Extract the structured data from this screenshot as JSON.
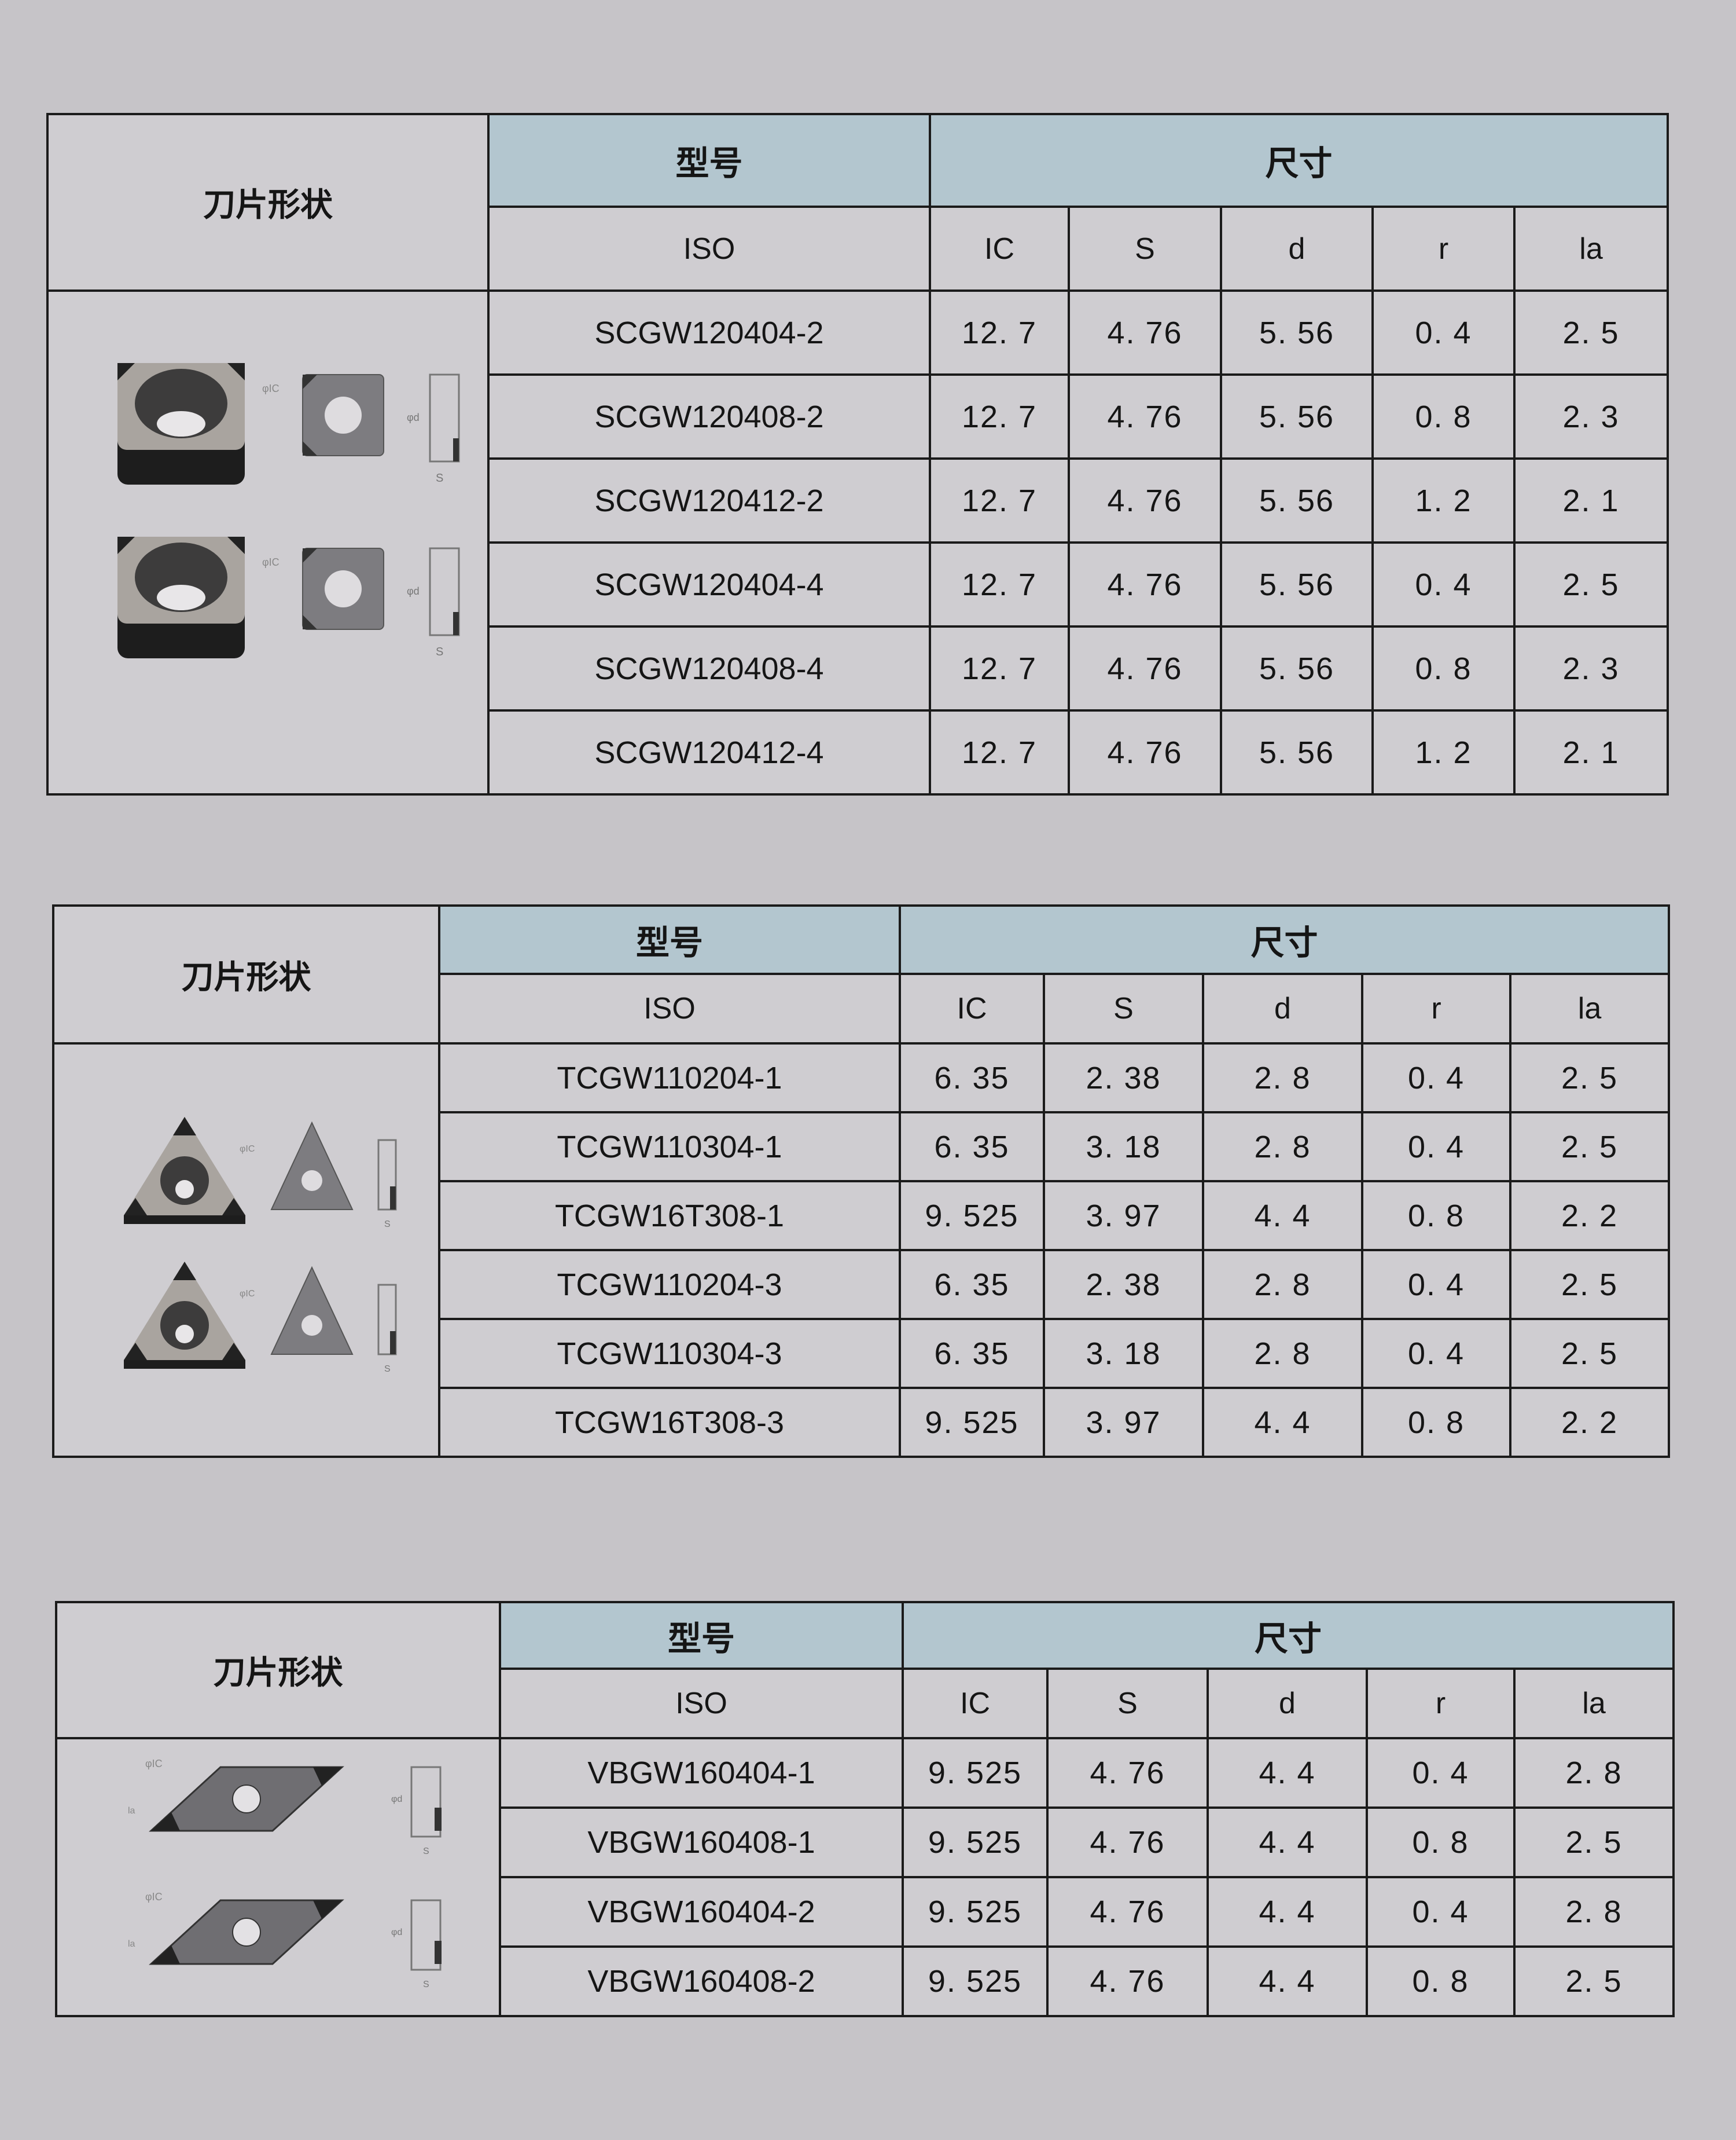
{
  "colors": {
    "header_fill": "#b3c6cf",
    "page_background": "#c6c4c8",
    "grid_line": "#1b1b1b"
  },
  "tables": [
    {
      "shape_label": "刀片形状",
      "model_label": "型号",
      "size_label": "尺寸",
      "columns": [
        "ISO",
        "IC",
        "S",
        "d",
        "r",
        "la"
      ],
      "insert_shape": "square-insert",
      "rows": [
        [
          "SCGW120404-2",
          "12. 7",
          "4. 76",
          "5. 56",
          "0. 4",
          "2. 5"
        ],
        [
          "SCGW120408-2",
          "12. 7",
          "4. 76",
          "5. 56",
          "0. 8",
          "2. 3"
        ],
        [
          "SCGW120412-2",
          "12. 7",
          "4. 76",
          "5. 56",
          "1. 2",
          "2. 1"
        ],
        [
          "SCGW120404-4",
          "12. 7",
          "4. 76",
          "5. 56",
          "0. 4",
          "2. 5"
        ],
        [
          "SCGW120408-4",
          "12. 7",
          "4. 76",
          "5. 56",
          "0. 8",
          "2. 3"
        ],
        [
          "SCGW120412-4",
          "12. 7",
          "4. 76",
          "5. 56",
          "1. 2",
          "2. 1"
        ]
      ]
    },
    {
      "shape_label": "刀片形状",
      "model_label": "型号",
      "size_label": "尺寸",
      "columns": [
        "ISO",
        "IC",
        "S",
        "d",
        "r",
        "la"
      ],
      "insert_shape": "triangle-insert",
      "rows": [
        [
          "TCGW110204-1",
          "6. 35",
          "2. 38",
          "2. 8",
          "0. 4",
          "2. 5"
        ],
        [
          "TCGW110304-1",
          "6. 35",
          "3. 18",
          "2. 8",
          "0. 4",
          "2. 5"
        ],
        [
          "TCGW16T308-1",
          "9. 525",
          "3. 97",
          "4. 4",
          "0. 8",
          "2. 2"
        ],
        [
          "TCGW110204-3",
          "6. 35",
          "2. 38",
          "2. 8",
          "0. 4",
          "2. 5"
        ],
        [
          "TCGW110304-3",
          "6. 35",
          "3. 18",
          "2. 8",
          "0. 4",
          "2. 5"
        ],
        [
          "TCGW16T308-3",
          "9. 525",
          "3. 97",
          "4. 4",
          "0. 8",
          "2. 2"
        ]
      ]
    },
    {
      "shape_label": "刀片形状",
      "model_label": "型号",
      "size_label": "尺寸",
      "columns": [
        "ISO",
        "IC",
        "S",
        "d",
        "r",
        "la"
      ],
      "insert_shape": "rhombus-insert",
      "rows": [
        [
          "VBGW160404-1",
          "9. 525",
          "4. 76",
          "4. 4",
          "0. 4",
          "2. 8"
        ],
        [
          "VBGW160408-1",
          "9. 525",
          "4. 76",
          "4. 4",
          "0. 8",
          "2. 5"
        ],
        [
          "VBGW160404-2",
          "9. 525",
          "4. 76",
          "4. 4",
          "0. 4",
          "2. 8"
        ],
        [
          "VBGW160408-2",
          "9. 525",
          "4. 76",
          "4. 4",
          "0. 8",
          "2. 5"
        ]
      ]
    }
  ]
}
